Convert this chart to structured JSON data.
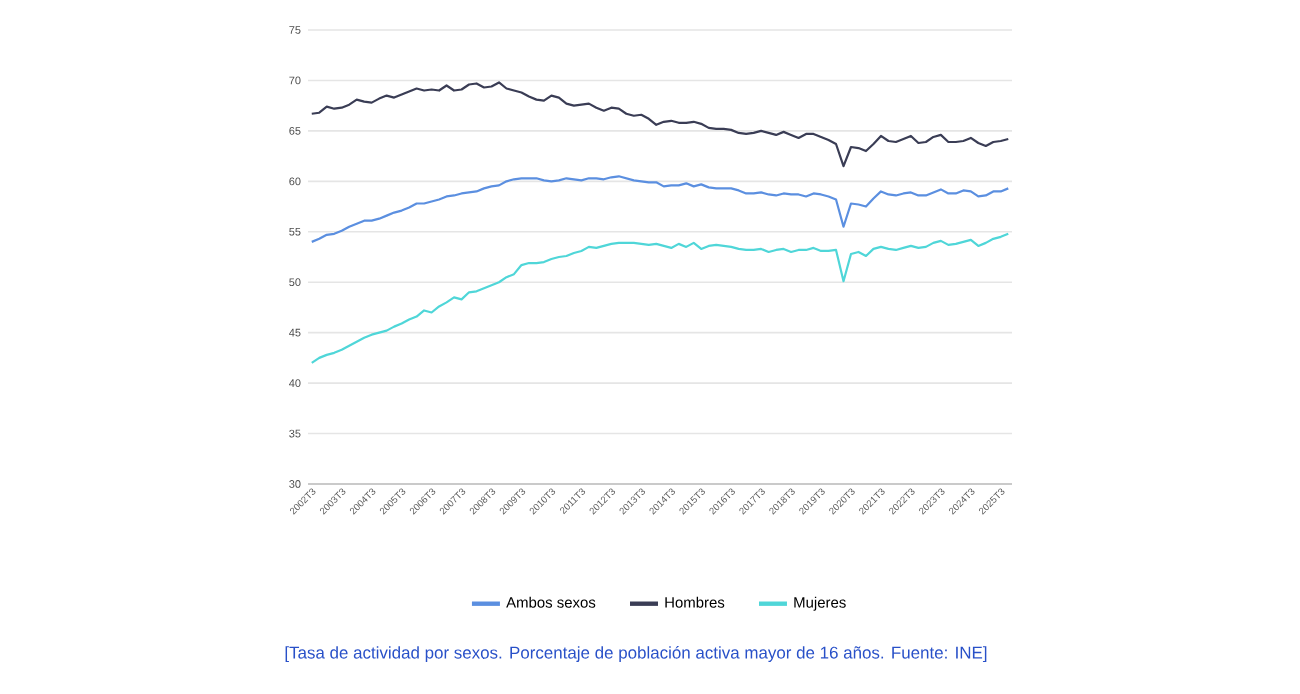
{
  "chart_data": {
    "type": "line",
    "categories": [
      "2002T3",
      null,
      null,
      null,
      "2003T3",
      null,
      null,
      null,
      "2004T3",
      null,
      null,
      null,
      "2005T3",
      null,
      null,
      null,
      "2006T3",
      null,
      null,
      null,
      "2007T3",
      null,
      null,
      null,
      "2008T3",
      null,
      null,
      null,
      "2009T3",
      null,
      null,
      null,
      "2010T3",
      null,
      null,
      null,
      "2011T3",
      null,
      null,
      null,
      "2012T3",
      null,
      null,
      null,
      "2013T3",
      null,
      null,
      null,
      "2014T3",
      null,
      null,
      null,
      "2015T3",
      null,
      null,
      null,
      "2016T3",
      null,
      null,
      null,
      "2017T3",
      null,
      null,
      null,
      "2018T3",
      null,
      null,
      null,
      "2019T3",
      null,
      null,
      null,
      "2020T3",
      null,
      null,
      null,
      "2021T3",
      null,
      null,
      null,
      "2022T3",
      null,
      null,
      null,
      "2023T3",
      null,
      null,
      null,
      "2024T3",
      null,
      null,
      null,
      "2025T3",
      null
    ],
    "series": [
      {
        "name": "Ambos sexos",
        "color": "#5b8fe0",
        "values": [
          54.0,
          54.3,
          54.7,
          54.8,
          55.1,
          55.5,
          55.8,
          56.1,
          56.1,
          56.3,
          56.6,
          56.9,
          57.1,
          57.4,
          57.8,
          57.8,
          58.0,
          58.2,
          58.5,
          58.6,
          58.8,
          58.9,
          59.0,
          59.3,
          59.5,
          59.6,
          60.0,
          60.2,
          60.3,
          60.3,
          60.3,
          60.1,
          60.0,
          60.1,
          60.3,
          60.2,
          60.1,
          60.3,
          60.3,
          60.2,
          60.4,
          60.5,
          60.3,
          60.1,
          60.0,
          59.9,
          59.9,
          59.5,
          59.6,
          59.6,
          59.8,
          59.5,
          59.7,
          59.4,
          59.3,
          59.3,
          59.3,
          59.1,
          58.8,
          58.8,
          58.9,
          58.7,
          58.6,
          58.8,
          58.7,
          58.7,
          58.5,
          58.8,
          58.7,
          58.5,
          58.2,
          55.5,
          57.8,
          57.7,
          57.5,
          58.3,
          59.0,
          58.7,
          58.6,
          58.8,
          58.9,
          58.6,
          58.6,
          58.9,
          59.2,
          58.8,
          58.8,
          59.1,
          59.0,
          58.5,
          58.6,
          59.0,
          59.0,
          59.3
        ]
      },
      {
        "name": "Hombres",
        "color": "#3a3d55",
        "values": [
          66.7,
          66.8,
          67.4,
          67.2,
          67.3,
          67.6,
          68.1,
          67.9,
          67.8,
          68.2,
          68.5,
          68.3,
          68.6,
          68.9,
          69.2,
          69.0,
          69.1,
          69.0,
          69.5,
          69.0,
          69.1,
          69.6,
          69.7,
          69.3,
          69.4,
          69.8,
          69.2,
          69.0,
          68.8,
          68.4,
          68.1,
          68.0,
          68.5,
          68.3,
          67.7,
          67.5,
          67.6,
          67.7,
          67.3,
          67.0,
          67.3,
          67.2,
          66.7,
          66.5,
          66.6,
          66.2,
          65.6,
          65.9,
          66.0,
          65.8,
          65.8,
          65.9,
          65.7,
          65.3,
          65.2,
          65.2,
          65.1,
          64.8,
          64.7,
          64.8,
          65.0,
          64.8,
          64.6,
          64.9,
          64.6,
          64.3,
          64.7,
          64.7,
          64.4,
          64.1,
          63.7,
          61.5,
          63.4,
          63.3,
          63.0,
          63.7,
          64.5,
          64.0,
          63.9,
          64.2,
          64.5,
          63.8,
          63.9,
          64.4,
          64.6,
          63.9,
          63.9,
          64.0,
          64.3,
          63.8,
          63.5,
          63.9,
          64.0,
          64.2
        ]
      },
      {
        "name": "Mujeres",
        "color": "#4fd6d8",
        "values": [
          42.0,
          42.5,
          42.8,
          43.0,
          43.3,
          43.7,
          44.1,
          44.5,
          44.8,
          45.0,
          45.2,
          45.6,
          45.9,
          46.3,
          46.6,
          47.2,
          47.0,
          47.6,
          48.0,
          48.5,
          48.3,
          49.0,
          49.1,
          49.4,
          49.7,
          50.0,
          50.5,
          50.8,
          51.7,
          51.9,
          51.9,
          52.0,
          52.3,
          52.5,
          52.6,
          52.9,
          53.1,
          53.5,
          53.4,
          53.6,
          53.8,
          53.9,
          53.9,
          53.9,
          53.8,
          53.7,
          53.8,
          53.6,
          53.4,
          53.8,
          53.5,
          53.9,
          53.3,
          53.6,
          53.7,
          53.6,
          53.5,
          53.3,
          53.2,
          53.2,
          53.3,
          53.0,
          53.2,
          53.3,
          53.0,
          53.2,
          53.2,
          53.4,
          53.1,
          53.1,
          53.2,
          50.1,
          52.8,
          53.0,
          52.6,
          53.3,
          53.5,
          53.3,
          53.2,
          53.4,
          53.6,
          53.4,
          53.5,
          53.9,
          54.1,
          53.7,
          53.8,
          54.0,
          54.2,
          53.6,
          53.9,
          54.3,
          54.5,
          54.8
        ]
      }
    ],
    "ylim": [
      30,
      75
    ],
    "yticks": [
      30,
      35,
      40,
      45,
      50,
      55,
      60,
      65,
      70,
      75
    ],
    "grid": "y",
    "legend": "bottom",
    "annotations": [
      "[Tasa de actividad por sexos. Porcentaje de población activa mayor de 16 años. Fuente: INE]"
    ]
  }
}
